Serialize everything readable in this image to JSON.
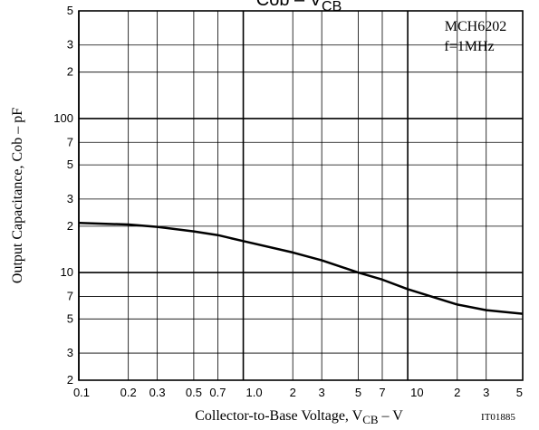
{
  "chart_data": {
    "type": "line",
    "title": {
      "main": "Cob – V",
      "subscript": "CB"
    },
    "x_label": {
      "main": "Collector-to-Base Voltage, V",
      "subscript": "CB",
      "unit": " – V"
    },
    "y_label": "Output Capacitance, Cob – pF",
    "annotations": [
      "MCH6202",
      "f=1MHz"
    ],
    "figure_id": "IT01885",
    "x": [
      0.1,
      0.2,
      0.3,
      0.5,
      0.7,
      1,
      2,
      3,
      5,
      7,
      10,
      20,
      30,
      50
    ],
    "values": [
      21,
      20.5,
      19.8,
      18.5,
      17.5,
      16,
      13.5,
      12,
      10,
      9,
      7.8,
      6.2,
      5.7,
      5.4
    ],
    "color": "#000000",
    "x_log": true,
    "y_log": true,
    "grid": true,
    "xlim": [
      0.1,
      50
    ],
    "ylim": [
      2,
      500
    ],
    "xticks": [
      0.1,
      0.2,
      0.3,
      0.5,
      0.7,
      {
        "value": 1,
        "label": "1.0"
      },
      {
        "value": 2,
        "label": "2"
      },
      {
        "value": 3,
        "label": "3"
      },
      {
        "value": 5,
        "label": "5"
      },
      {
        "value": 7,
        "label": "7"
      },
      10,
      {
        "value": 20,
        "label": "2"
      },
      {
        "value": 30,
        "label": "3"
      },
      {
        "value": 50,
        "label": "5"
      }
    ],
    "yticks": [
      2,
      3,
      5,
      7,
      10,
      {
        "value": 20,
        "label": "2"
      },
      {
        "value": 30,
        "label": "3"
      },
      {
        "value": 50,
        "label": "5"
      },
      {
        "value": 70,
        "label": "7"
      },
      100,
      {
        "value": 200,
        "label": "2"
      },
      {
        "value": 300,
        "label": "3"
      },
      {
        "value": 500,
        "label": "5"
      }
    ]
  }
}
